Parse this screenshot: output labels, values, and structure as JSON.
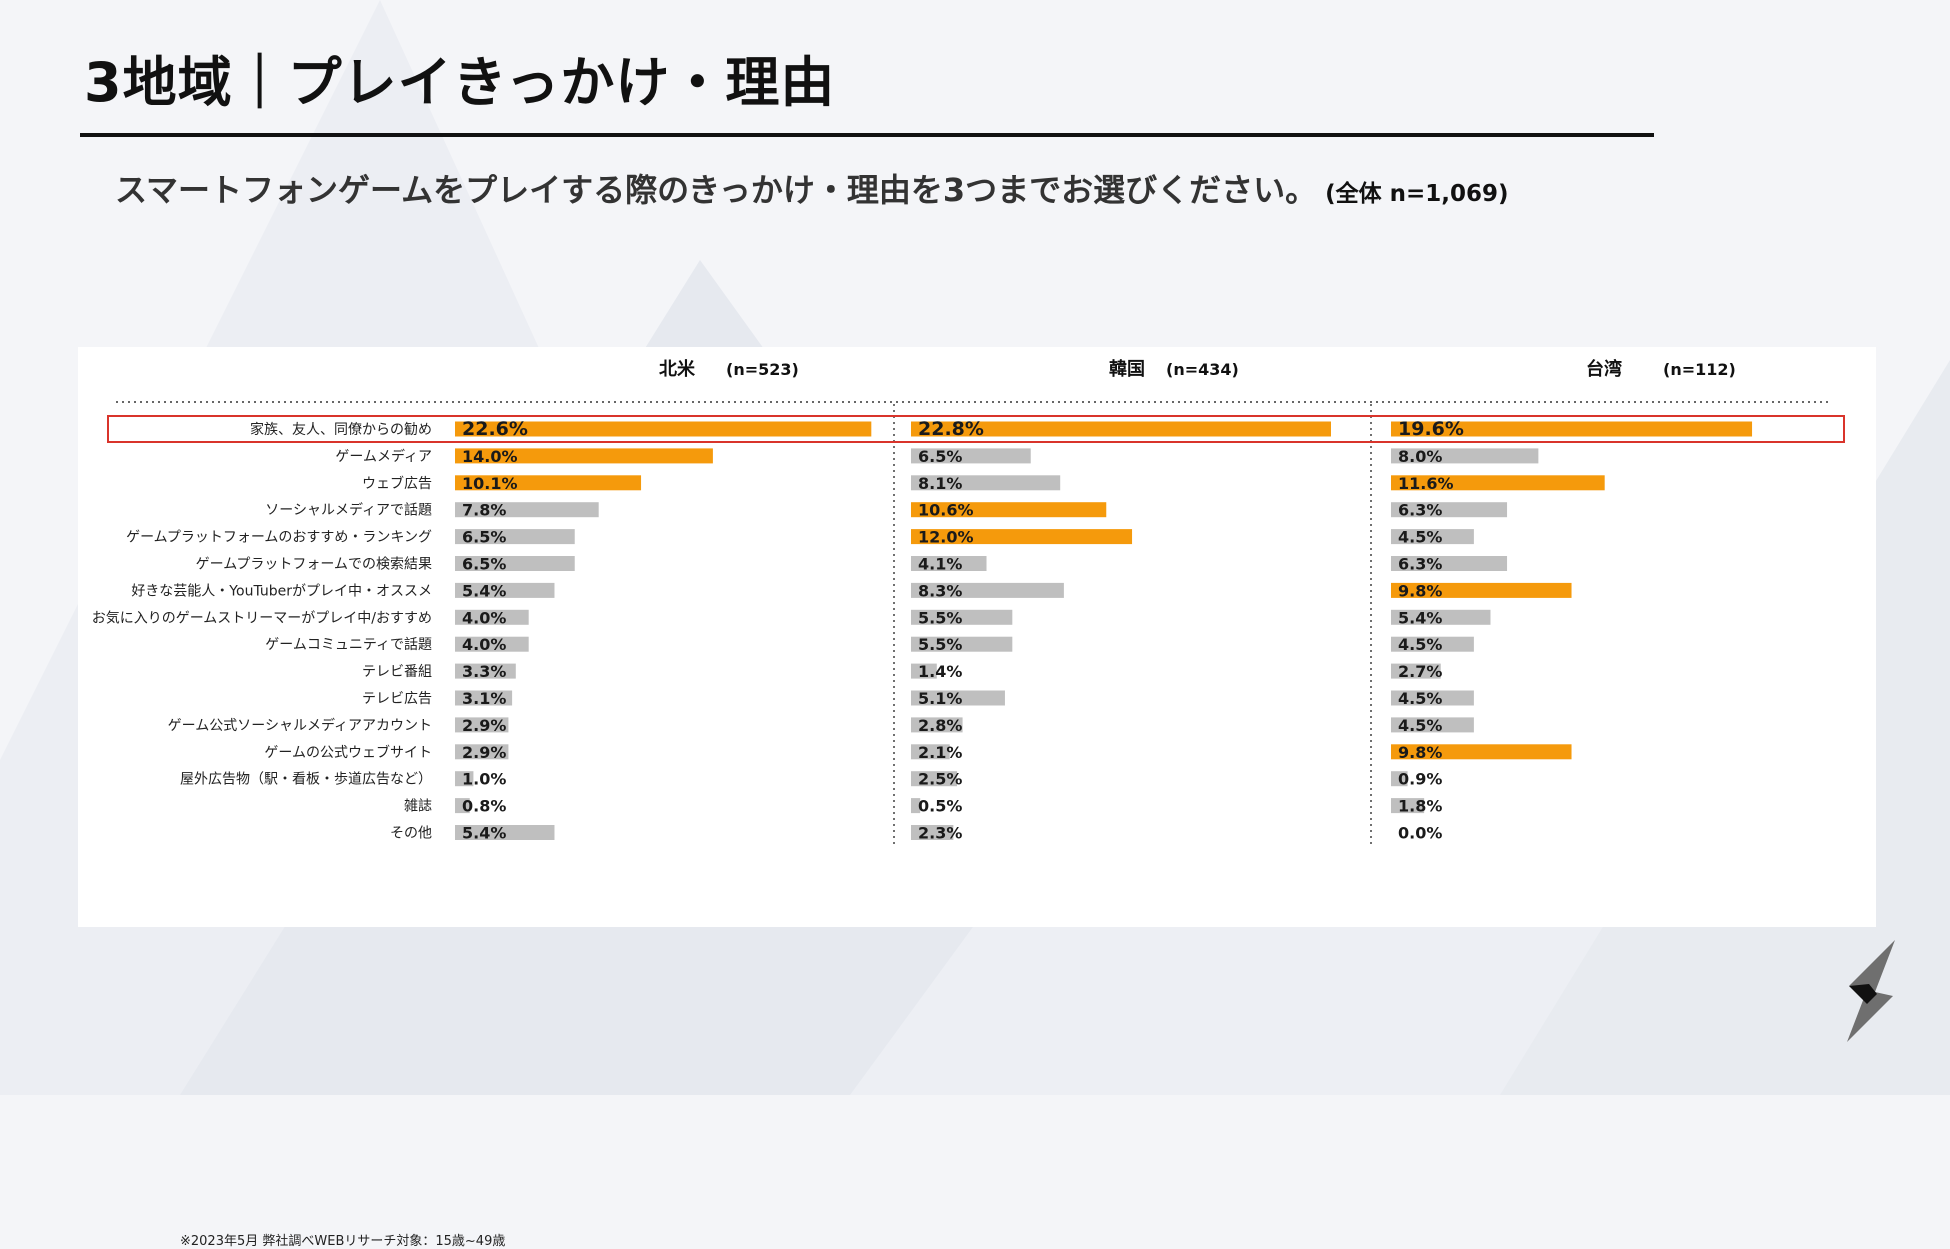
{
  "page": {
    "title": "3地域｜プレイきっかけ・理由",
    "question": "スマートフォンゲームをプレイする際のきっかけ・理由を3つまでお選びください。",
    "total_n": "(全体 n=1,069)",
    "footnote": "※2023年5月 弊社調べWEBリサーチ対象：15歳~49歳",
    "logo_icon": "brand-s-logo-icon"
  },
  "colors": {
    "highlight": "#f59a0c",
    "normal": "#bfbfbf",
    "frame": "#d9342b",
    "text": "#111111"
  },
  "chart_data": {
    "type": "bar",
    "orientation": "horizontal",
    "categories": [
      "家族、友人、同僚からの勧め",
      "ゲームメディア",
      "ウェブ広告",
      "ソーシャルメディアで話題",
      "ゲームプラットフォームのおすすめ・ランキング",
      "ゲームプラットフォームでの検索結果",
      "好きな芸能人・YouTuberがプレイ中・オススメ",
      "お気に入りのゲームストリーマーがプレイ中/おすすめ",
      "ゲームコミュニティで話題",
      "テレビ番組",
      "テレビ広告",
      "ゲーム公式ソーシャルメディアアカウント",
      "ゲームの公式ウェブサイト",
      "屋外広告物（駅・看板・歩道広告など）",
      "雑誌",
      "その他"
    ],
    "series": [
      {
        "name": "北米",
        "n": "(n=523)",
        "values": [
          22.6,
          14.0,
          10.1,
          7.8,
          6.5,
          6.5,
          5.4,
          4.0,
          4.0,
          3.3,
          3.1,
          2.9,
          2.9,
          1.0,
          0.8,
          5.4
        ],
        "labels": [
          "22.6%",
          "14.0%",
          "10.1%",
          "7.8%",
          "6.5%",
          "6.5%",
          "5.4%",
          "4.0%",
          "4.0%",
          "3.3%",
          "3.1%",
          "2.9%",
          "2.9%",
          "1.0%",
          "0.8%",
          "5.4%"
        ],
        "highlight": [
          true,
          true,
          true,
          false,
          false,
          false,
          false,
          false,
          false,
          false,
          false,
          false,
          false,
          false,
          false,
          false
        ]
      },
      {
        "name": "韓国",
        "n": "(n=434)",
        "values": [
          22.8,
          6.5,
          8.1,
          10.6,
          12.0,
          4.1,
          8.3,
          5.5,
          5.5,
          1.4,
          5.1,
          2.8,
          2.1,
          2.5,
          0.5,
          2.3
        ],
        "labels": [
          "22.8%",
          "6.5%",
          "8.1%",
          "10.6%",
          "12.0%",
          "4.1%",
          "8.3%",
          "5.5%",
          "5.5%",
          "1.4%",
          "5.1%",
          "2.8%",
          "2.1%",
          "2.5%",
          "0.5%",
          "2.3%"
        ],
        "highlight": [
          true,
          false,
          false,
          true,
          true,
          false,
          false,
          false,
          false,
          false,
          false,
          false,
          false,
          false,
          false,
          false
        ]
      },
      {
        "name": "台湾",
        "n": "(n=112)",
        "values": [
          19.6,
          8.0,
          11.6,
          6.3,
          4.5,
          6.3,
          9.8,
          5.4,
          4.5,
          2.7,
          4.5,
          4.5,
          9.8,
          0.9,
          1.8,
          0.0
        ],
        "labels": [
          "19.6%",
          "8.0%",
          "11.6%",
          "6.3%",
          "4.5%",
          "6.3%",
          "9.8%",
          "5.4%",
          "4.5%",
          "2.7%",
          "4.5%",
          "4.5%",
          "9.8%",
          "0.9%",
          "1.8%",
          "0.0%"
        ],
        "highlight": [
          true,
          false,
          true,
          false,
          false,
          false,
          true,
          false,
          false,
          false,
          false,
          false,
          true,
          false,
          false,
          false
        ]
      }
    ],
    "highlighted_row": "家族、友人、同僚からの勧め",
    "xlim": [
      0,
      22.8
    ],
    "grid": false,
    "legend": "none"
  }
}
